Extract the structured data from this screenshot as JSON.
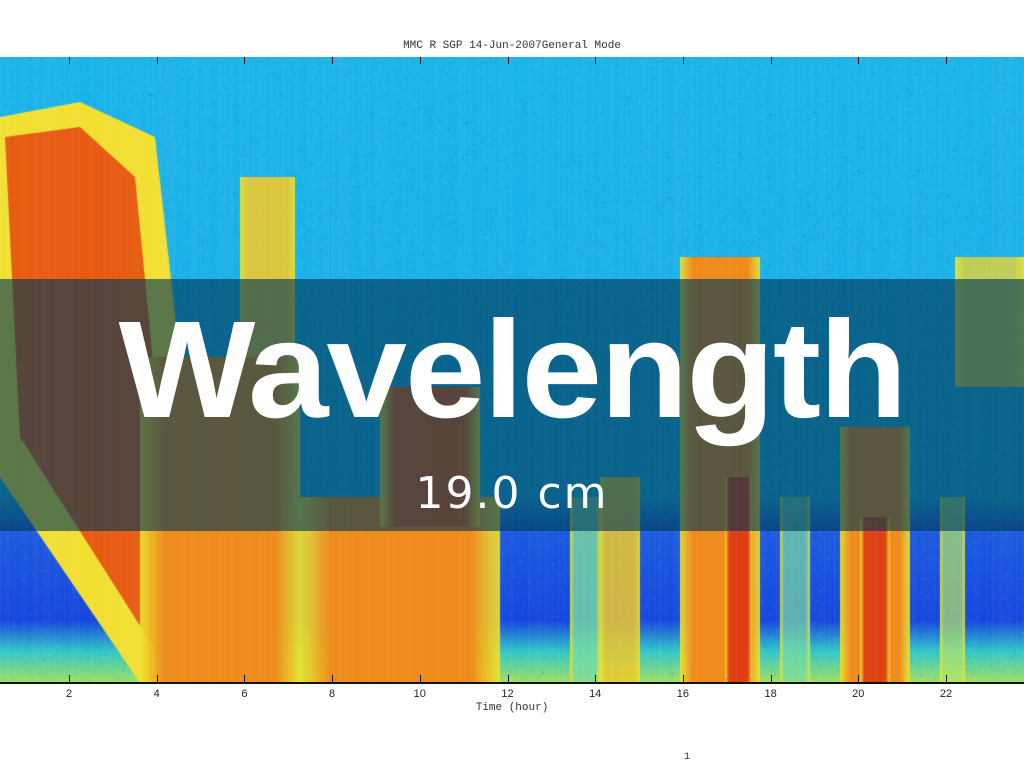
{
  "plot": {
    "title": "MMC R SGP 14-Jun-2007General Mode",
    "xlabel": "Time (hour)",
    "x_ticks": [
      "2",
      "4",
      "6",
      "8",
      "10",
      "12",
      "14",
      "16",
      "18",
      "20",
      "22"
    ],
    "x_range_hours": [
      0,
      24
    ],
    "colors": {
      "background_top": "#1ab6ea",
      "background_low": "#1446e0",
      "echo": "#f07a10"
    }
  },
  "slide": {
    "headline": "Wavelength",
    "subtitle": "19.0 cm",
    "page_number": "1"
  }
}
